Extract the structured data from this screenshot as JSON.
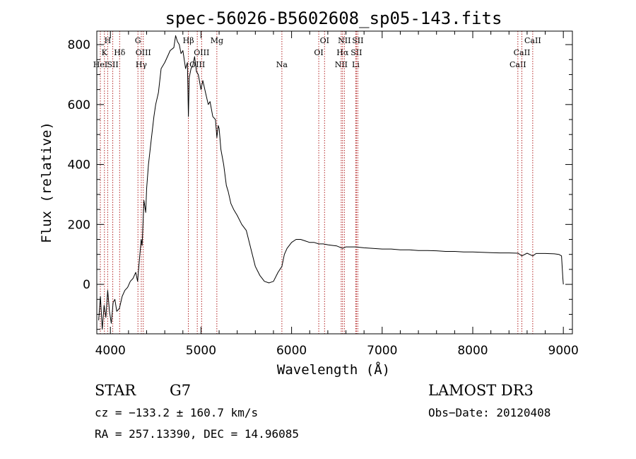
{
  "chart_data": {
    "type": "line",
    "title": "spec-56026-B5602608_sp05-143.fits",
    "xlabel": "Wavelength (Å)",
    "ylabel": "Flux (relative)",
    "xlim": [
      3850,
      9100
    ],
    "ylim": [
      -165,
      845
    ],
    "xticks": [
      4000,
      5000,
      6000,
      7000,
      8000,
      9000
    ],
    "yticks": [
      0,
      200,
      400,
      600,
      800
    ],
    "series": [
      {
        "name": "flux",
        "x": [
          3870,
          3890,
          3910,
          3930,
          3950,
          3970,
          3990,
          4010,
          4030,
          4050,
          4070,
          4100,
          4130,
          4160,
          4190,
          4220,
          4250,
          4280,
          4300,
          4320,
          4340,
          4350,
          4370,
          4390,
          4400,
          4420,
          4450,
          4480,
          4500,
          4530,
          4560,
          4600,
          4630,
          4660,
          4700,
          4720,
          4740,
          4760,
          4780,
          4800,
          4830,
          4850,
          4861,
          4870,
          4890,
          4910,
          4930,
          4950,
          4970,
          5000,
          5020,
          5050,
          5080,
          5100,
          5130,
          5160,
          5175,
          5190,
          5200,
          5220,
          5250,
          5280,
          5300,
          5330,
          5360,
          5400,
          5450,
          5500,
          5550,
          5600,
          5650,
          5700,
          5750,
          5800,
          5850,
          5893,
          5920,
          5950,
          6000,
          6050,
          6100,
          6150,
          6200,
          6250,
          6300,
          6350,
          6400,
          6450,
          6500,
          6563,
          6600,
          6700,
          6800,
          6900,
          7000,
          7100,
          7200,
          7300,
          7400,
          7500,
          7600,
          7700,
          7800,
          7900,
          8000,
          8100,
          8200,
          8300,
          8400,
          8500,
          8542,
          8600,
          8662,
          8700,
          8800,
          8900,
          8950,
          8980,
          8995,
          9000
        ],
        "values": [
          -120,
          -40,
          -150,
          -70,
          -110,
          -20,
          -90,
          -130,
          -60,
          -50,
          -90,
          -80,
          -40,
          -20,
          -10,
          10,
          20,
          40,
          10,
          80,
          150,
          130,
          280,
          240,
          320,
          400,
          480,
          560,
          600,
          640,
          720,
          740,
          760,
          780,
          790,
          830,
          810,
          800,
          770,
          780,
          720,
          740,
          560,
          690,
          720,
          730,
          760,
          710,
          700,
          650,
          680,
          640,
          600,
          610,
          560,
          550,
          490,
          530,
          520,
          450,
          400,
          330,
          310,
          270,
          250,
          230,
          200,
          180,
          120,
          60,
          30,
          10,
          5,
          10,
          40,
          60,
          100,
          120,
          140,
          150,
          150,
          145,
          140,
          140,
          135,
          135,
          132,
          130,
          128,
          120,
          125,
          125,
          122,
          120,
          118,
          118,
          115,
          115,
          113,
          113,
          112,
          110,
          110,
          108,
          108,
          107,
          106,
          105,
          105,
          104,
          95,
          104,
          95,
          103,
          103,
          102,
          100,
          95,
          20,
          0
        ]
      }
    ],
    "lines": [
      {
        "wl": 3889,
        "labels": [
          "HeI"
        ],
        "rows": [
          3
        ]
      },
      {
        "wl": 3934,
        "labels": [
          "K"
        ],
        "rows": [
          2
        ]
      },
      {
        "wl": 3970,
        "labels": [
          "H"
        ],
        "rows": [
          1
        ]
      },
      {
        "wl": 4026,
        "labels": [
          "SII"
        ],
        "rows": [
          3
        ]
      },
      {
        "wl": 4102,
        "labels": [
          "Hδ"
        ],
        "rows": [
          2
        ]
      },
      {
        "wl": 4304,
        "labels": [
          "G"
        ],
        "rows": [
          1
        ]
      },
      {
        "wl": 4341,
        "labels": [
          "Hγ"
        ],
        "rows": [
          3
        ]
      },
      {
        "wl": 4363,
        "labels": [
          "OIII"
        ],
        "rows": [
          2
        ]
      },
      {
        "wl": 4861,
        "labels": [
          "Hβ"
        ],
        "rows": [
          1
        ]
      },
      {
        "wl": 4959,
        "labels": [
          "OIII"
        ],
        "rows": [
          3
        ]
      },
      {
        "wl": 5007,
        "labels": [
          "OIII"
        ],
        "rows": [
          2
        ]
      },
      {
        "wl": 5175,
        "labels": [
          "Mg"
        ],
        "rows": [
          1
        ]
      },
      {
        "wl": 5893,
        "labels": [
          "Na"
        ],
        "rows": [
          3
        ]
      },
      {
        "wl": 6300,
        "labels": [
          "OI"
        ],
        "rows": [
          2
        ]
      },
      {
        "wl": 6364,
        "labels": [
          "OI"
        ],
        "rows": [
          1
        ]
      },
      {
        "wl": 6548,
        "labels": [
          "NII"
        ],
        "rows": [
          3
        ]
      },
      {
        "wl": 6563,
        "labels": [
          "Hα"
        ],
        "rows": [
          2
        ]
      },
      {
        "wl": 6583,
        "labels": [
          "NII"
        ],
        "rows": [
          1
        ]
      },
      {
        "wl": 6708,
        "labels": [
          "Li"
        ],
        "rows": [
          3
        ]
      },
      {
        "wl": 6716,
        "labels": [
          "SII"
        ],
        "rows": [
          2
        ]
      },
      {
        "wl": 6731,
        "labels": [
          "SII"
        ],
        "rows": [
          1
        ]
      },
      {
        "wl": 8498,
        "labels": [
          "CaII"
        ],
        "rows": [
          3
        ]
      },
      {
        "wl": 8542,
        "labels": [
          "CaII"
        ],
        "rows": [
          2
        ]
      },
      {
        "wl": 8662,
        "labels": [
          "CaII"
        ],
        "rows": [
          1
        ]
      }
    ]
  },
  "info": {
    "object_class": "STAR",
    "subclass": "G7",
    "survey": "LAMOST DR3",
    "cz": "cz = −133.2 ± 160.7 km/s",
    "obs_date": "Obs−Date: 20120408",
    "coords": "RA = 257.13390, DEC =  14.96085"
  },
  "colors": {
    "axis": "#000000",
    "spectrum": "#000000",
    "line_marker": "#b22222"
  }
}
